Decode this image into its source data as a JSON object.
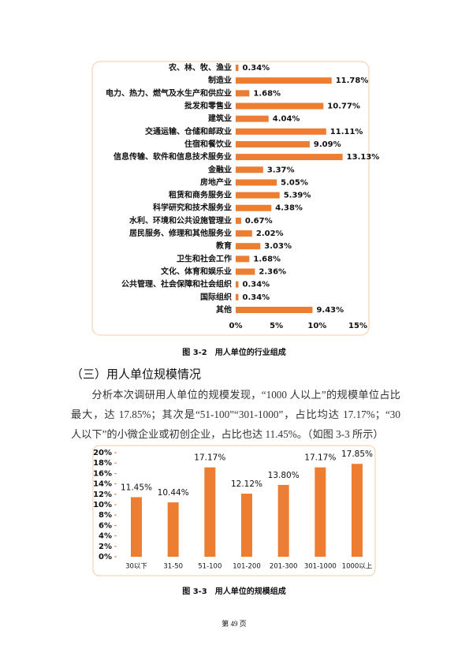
{
  "chart_data": [
    {
      "type": "bar",
      "orientation": "horizontal",
      "title": "图 3-2　用人单位的行业组成",
      "categories": [
        "农、林、牧、渔业",
        "制造业",
        "电力、热力、燃气及水生产和供应业",
        "批发和零售业",
        "建筑业",
        "交通运输、仓储和邮政业",
        "住宿和餐饮业",
        "信息传输、软件和信息技术服务业",
        "金融业",
        "房地产业",
        "租赁和商务服务业",
        "科学研究和技术服务业",
        "水利、环境和公共设施管理业",
        "居民服务、修理和其他服务业",
        "教育",
        "卫生和社会工作",
        "文化、体育和娱乐业",
        "公共管理、社会保障和社会组织",
        "国际组织",
        "其他"
      ],
      "values": [
        0.34,
        11.78,
        1.68,
        10.77,
        4.04,
        11.11,
        9.09,
        13.13,
        3.37,
        5.05,
        5.39,
        4.38,
        0.67,
        2.02,
        3.03,
        1.68,
        2.36,
        0.34,
        0.34,
        9.43
      ],
      "value_labels": [
        "0.34%",
        "11.78%",
        "1.68%",
        "10.77%",
        "4.04%",
        "11.11%",
        "9.09%",
        "13.13%",
        "3.37%",
        "5.05%",
        "5.39%",
        "4.38%",
        "0.67%",
        "2.02%",
        "3.03%",
        "1.68%",
        "2.36%",
        "0.34%",
        "0.34%",
        "9.43%"
      ],
      "color": "#ed7d31",
      "xlim": [
        0,
        15
      ],
      "xticks": [
        {
          "value": 0,
          "label": "0%"
        },
        {
          "value": 5,
          "label": "5%"
        },
        {
          "value": 10,
          "label": "10%"
        },
        {
          "value": 15,
          "label": "15%"
        }
      ]
    },
    {
      "type": "bar",
      "orientation": "vertical",
      "title": "图 3-3　用人单位的规模组成",
      "categories": [
        "30以下",
        "31-50",
        "51-100",
        "101-200",
        "201-300",
        "301-1000",
        "1000以上"
      ],
      "values": [
        11.45,
        10.44,
        17.17,
        12.12,
        13.8,
        17.17,
        17.85
      ],
      "value_labels": [
        "11.45%",
        "10.44%",
        "17.17%",
        "12.12%",
        "13.80%",
        "17.17%",
        "17.85%"
      ],
      "color": "#ed7d31",
      "ylim": [
        0,
        20
      ],
      "yticks": [
        {
          "value": 0,
          "label": "0%"
        },
        {
          "value": 2,
          "label": "2%"
        },
        {
          "value": 4,
          "label": "4%"
        },
        {
          "value": 6,
          "label": "6%"
        },
        {
          "value": 8,
          "label": "8%"
        },
        {
          "value": 10,
          "label": "10%"
        },
        {
          "value": 12,
          "label": "12%"
        },
        {
          "value": 14,
          "label": "14%"
        },
        {
          "value": 16,
          "label": "16%"
        },
        {
          "value": 18,
          "label": "18%"
        },
        {
          "value": 20,
          "label": "20%"
        }
      ]
    }
  ],
  "section_heading": "（三）用人单位规模情况",
  "paragraph": "分析本次调研用人单位的规模发现，“1000 人以上”的规模单位占比最大，达 17.85%；其次是“51-100”“301-1000”，占比均达 17.17%；“30 人以下”的小微企业或初创企业，占比也达 11.45%。（如图 3-3 所示）",
  "page_number": "第 49 页"
}
